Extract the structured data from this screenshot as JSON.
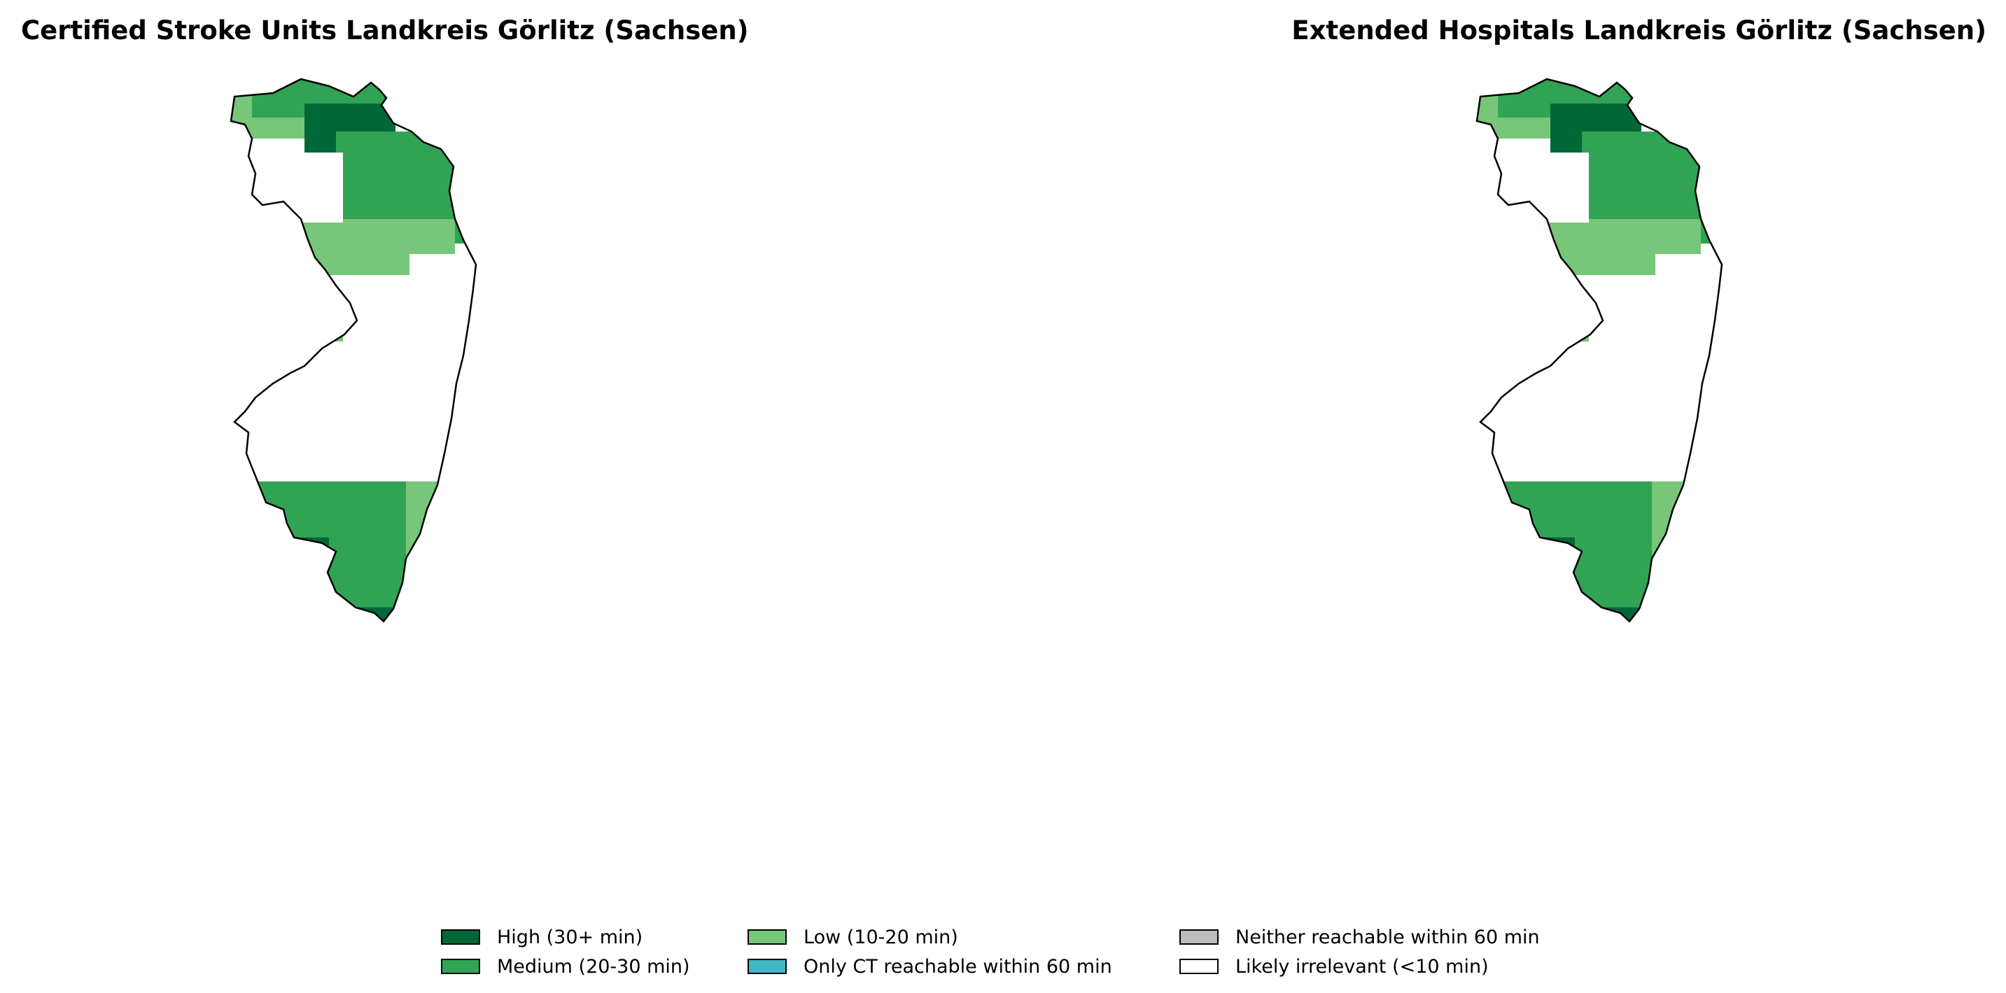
{
  "left_title": "Certified Stroke Units Landkreis Görlitz (Sachsen)",
  "right_title": "Extended Hospitals Landkreis Görlitz (Sachsen)",
  "categories": {
    "high": {
      "label": "High (30+ min)",
      "color": "#006837"
    },
    "medium": {
      "label": "Medium (20-30 min)",
      "color": "#31a354"
    },
    "low": {
      "label": "Low (10-20 min)",
      "color": "#78c679"
    },
    "ct": {
      "label": "Only CT reachable within 60 min",
      "color": "#41b6c4"
    },
    "neither": {
      "label": "Neither reachable within 60 min",
      "color": "#bdbdbd"
    },
    "irrelevant": {
      "label": "Likely irrelevant (<10 min)",
      "color": "#ffffff"
    }
  }
}
